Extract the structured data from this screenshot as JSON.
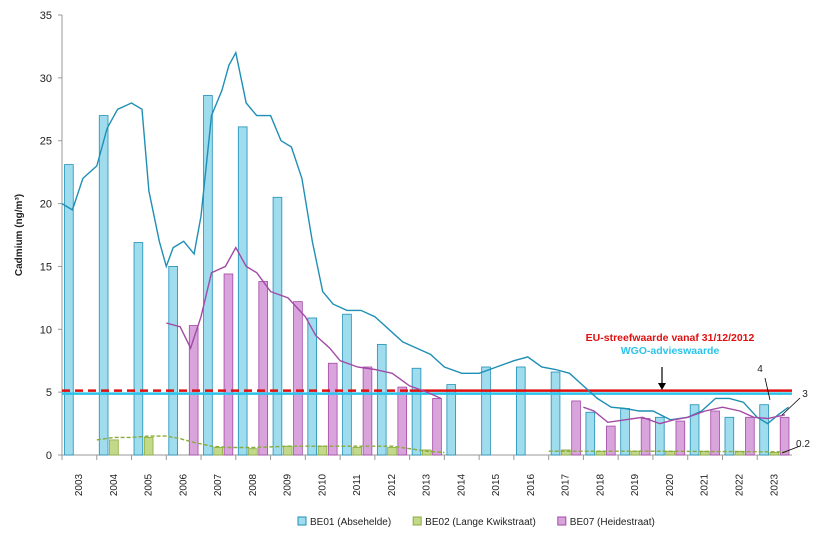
{
  "chart_data": {
    "type": "bar",
    "y_label": "Cadmium (ng/m³)",
    "categories": [
      "2003",
      "2004",
      "2005",
      "2006",
      "2007",
      "2008",
      "2009",
      "2010",
      "2011",
      "2012",
      "2013",
      "2014",
      "2015",
      "2016",
      "2017",
      "2018",
      "2019",
      "2020",
      "2021",
      "2022",
      "2023"
    ],
    "ylim": [
      0,
      35
    ],
    "yticks": [
      0,
      5,
      10,
      15,
      20,
      25,
      30,
      35
    ],
    "series": [
      {
        "name": "BE01 (Absehelde)",
        "color": "#1f8fb5",
        "fill": "#9fdcee",
        "values": [
          23.1,
          27,
          16.9,
          15,
          28.6,
          26.1,
          20.5,
          10.9,
          11.2,
          8.8,
          6.9,
          5.6,
          7.0,
          7.0,
          6.6,
          3.4,
          3.7,
          3.0,
          4.0,
          3.0,
          4.0
        ],
        "trend": {
          "x": [
            2003.0,
            2003.3,
            2003.6,
            2004.0,
            2004.3,
            2004.6,
            2005.0,
            2005.3,
            2005.5,
            2005.8,
            2006.0,
            2006.2,
            2006.5,
            2006.8,
            2007.0,
            2007.3,
            2007.6,
            2007.8,
            2008.0,
            2008.3,
            2008.6,
            2009.0,
            2009.3,
            2009.6,
            2009.9,
            2010.2,
            2010.5,
            2010.8,
            2011.2,
            2011.6,
            2012.0,
            2012.4,
            2012.8,
            2013.2,
            2013.6,
            2014.0,
            2014.5,
            2015.0,
            2015.5,
            2016.0,
            2016.4,
            2016.8,
            2017.2,
            2017.6,
            2018.0,
            2018.4,
            2018.8,
            2019.2,
            2019.6,
            2020.0,
            2020.5,
            2021.0,
            2021.4,
            2021.8,
            2022.2,
            2022.6,
            2023.0,
            2023.3,
            2023.6,
            2023.9
          ],
          "values": [
            20,
            19.5,
            22,
            23,
            26,
            27.5,
            28,
            27.5,
            21,
            17,
            15,
            16.5,
            17,
            16,
            19,
            27,
            29,
            31,
            32,
            28,
            27,
            27,
            25,
            24.5,
            22,
            17,
            13,
            12,
            11.5,
            11.5,
            11,
            10,
            9,
            8.5,
            8,
            7,
            6.5,
            6.5,
            7,
            7.5,
            7.8,
            7,
            6.8,
            6.5,
            5.5,
            4.5,
            3.8,
            3.7,
            3.5,
            3.5,
            2.8,
            3,
            3.5,
            4.5,
            4.5,
            4.2,
            3,
            2.5,
            3.2,
            3.8
          ]
        }
      },
      {
        "name": "BE02 (Lange Kwikstraat)",
        "color": "#8aab3c",
        "fill": "#c3d98a",
        "values": [
          null,
          1.2,
          1.4,
          null,
          0.6,
          0.5,
          0.7,
          0.7,
          0.6,
          0.6,
          0.4,
          null,
          null,
          null,
          0.4,
          0.3,
          0.3,
          0.3,
          0.3,
          0.3,
          0.2
        ],
        "trend": {
          "x": [
            2004.0,
            2004.5,
            2005.0,
            2005.5,
            2006.0,
            2006.4,
            2006.8,
            2007.3,
            2007.8,
            2008.5,
            2009.5,
            2010.5,
            2011.5,
            2012.5,
            2013.5,
            2014.0,
            2015.0,
            2017.0,
            2020.0,
            2023.9
          ],
          "values": [
            1.2,
            1.4,
            1.4,
            1.5,
            1.5,
            1.3,
            1.0,
            0.7,
            0.6,
            0.6,
            0.7,
            0.7,
            0.7,
            0.7,
            0.3,
            0.2,
            null,
            0.3,
            0.3,
            0.25
          ]
        }
      },
      {
        "name": "BE07 (Heidestraat)",
        "color": "#a24aa6",
        "fill": "#d9a3dc",
        "values": [
          null,
          null,
          null,
          10.3,
          14.4,
          13.8,
          12.2,
          7.3,
          7.0,
          5.4,
          4.5,
          null,
          null,
          null,
          4.3,
          2.3,
          2.9,
          2.7,
          3.5,
          3.0,
          3.0
        ],
        "trend": {
          "x": [
            2006.0,
            2006.4,
            2006.7,
            2007.0,
            2007.3,
            2007.7,
            2008.0,
            2008.3,
            2008.6,
            2009.0,
            2009.5,
            2010.0,
            2010.3,
            2010.7,
            2011.0,
            2011.5,
            2012.0,
            2012.5,
            2013.0,
            2013.5,
            2013.9,
            2016.0,
            2018.0,
            2018.3,
            2018.7,
            2019.2,
            2019.7,
            2020.2,
            2020.6,
            2021.0,
            2021.5,
            2022.0,
            2022.5,
            2022.9,
            2023.3,
            2023.8
          ],
          "values": [
            10.5,
            10.2,
            8.5,
            11,
            14.5,
            15,
            16.5,
            15,
            14.5,
            13,
            12.5,
            11,
            9.5,
            8.5,
            7.5,
            7,
            6.8,
            6.5,
            5.5,
            5,
            4.5,
            null,
            3.8,
            3.5,
            2.6,
            2.8,
            3,
            2.5,
            2.8,
            3.0,
            3.5,
            3.8,
            3.5,
            3.0,
            2.9,
            3.2
          ]
        }
      }
    ],
    "reference_lines": [
      {
        "label": "EU-streefwaarde vanaf 31/12/2012",
        "value": 5,
        "color": "#e01010",
        "dashed_until": 2013
      },
      {
        "label": "WGO-advieswaarde",
        "value": 5,
        "color": "#2cc3ea"
      }
    ],
    "annotations": [
      4,
      3,
      0.2
    ]
  }
}
